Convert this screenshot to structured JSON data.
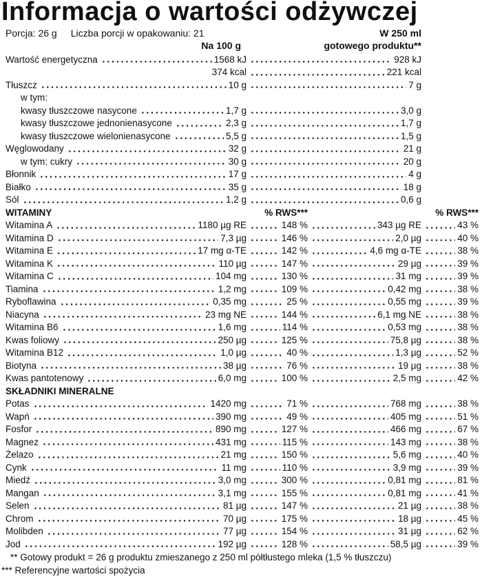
{
  "page": {
    "title": "Informacja o wartości odżywczej",
    "serving_info": {
      "porcja": "Porcja: 26 g",
      "liczba_porcji": "Liczba porcji w opakowaniu: 21"
    },
    "columns": {
      "per_100g": "Na 100 g",
      "per_250ml_line1": "W 250 ml",
      "per_250ml_line2": "gotowego produktu**"
    }
  },
  "rows": [
    {
      "type": "macro",
      "label": "Wartość energetyczna",
      "v1": "1568 kJ",
      "v2": "928 kJ"
    },
    {
      "type": "macro",
      "label": "",
      "v1": "374 kcal",
      "v2": "221 kcal",
      "no_left_dots": true
    },
    {
      "type": "macro",
      "label": "Tłuszcz",
      "v1": "10 g",
      "v2": "7 g"
    },
    {
      "type": "label",
      "label": "w tym:",
      "indent": true
    },
    {
      "type": "macro",
      "label": "kwasy tłuszczowe nasycone",
      "indent": true,
      "v1": "1,7 g",
      "v2": "3,0 g"
    },
    {
      "type": "macro",
      "label": "kwasy tłuszczowe jednonienasycone",
      "indent": true,
      "v1": "2,3 g",
      "v2": "1,7 g"
    },
    {
      "type": "macro",
      "label": "kwasy tłuszczowe wielonienasycone",
      "indent": true,
      "v1": "5,5 g",
      "v2": "1,5 g"
    },
    {
      "type": "macro",
      "label": "Węglowodany",
      "v1": "32 g",
      "v2": "21 g"
    },
    {
      "type": "macro",
      "label": "w tym: cukry",
      "indent": true,
      "v1": "30 g",
      "v2": "20 g"
    },
    {
      "type": "macro",
      "label": "Błonnik",
      "v1": "17 g",
      "v2": "4 g"
    },
    {
      "type": "macro",
      "label": "Białko",
      "v1": "35 g",
      "v2": "18 g"
    },
    {
      "type": "macro",
      "label": "Sól",
      "v1": "1,2 g",
      "v2": "0,6 g"
    },
    {
      "type": "section",
      "label": "WITAMINY",
      "rws1": "% RWS***",
      "rws2": "% RWS***"
    },
    {
      "type": "micro",
      "label": "Witamina A",
      "v1": "1180 µg RE",
      "p1": "148 %",
      "v2": "343 µg RE",
      "p2": "43 %"
    },
    {
      "type": "micro",
      "label": "Witamina D",
      "v1": "7,3 µg",
      "p1": "146 %",
      "v2": "2,0 µg",
      "p2": "40 %"
    },
    {
      "type": "micro",
      "label": "Witamina E",
      "v1": "17 mg α-TE",
      "p1": "142 %",
      "v2": "4,6 mg α-TE",
      "p2": "38 %"
    },
    {
      "type": "micro",
      "label": "Witamina K",
      "v1": "110 µg",
      "p1": "147 %",
      "v2": "29 µg",
      "p2": "39 %"
    },
    {
      "type": "micro",
      "label": "Witamina C",
      "v1": "104 mg",
      "p1": "130 %",
      "v2": "31 mg",
      "p2": "39 %"
    },
    {
      "type": "micro",
      "label": "Tiamina",
      "v1": "1,2 mg",
      "p1": "109 %",
      "v2": "0,42 mg",
      "p2": "38 %"
    },
    {
      "type": "micro",
      "label": "Ryboflawina",
      "v1": "0,35 mg",
      "p1": "25 %",
      "v2": "0,55 mg",
      "p2": "39 %"
    },
    {
      "type": "micro",
      "label": "Niacyna",
      "v1": "23 mg NE",
      "p1": "144 %",
      "v2": "6,1 mg NE",
      "p2": "38 %"
    },
    {
      "type": "micro",
      "label": "Witamina B6",
      "v1": "1,6 mg",
      "p1": "114 %",
      "v2": "0,53 mg",
      "p2": "38 %"
    },
    {
      "type": "micro",
      "label": "Kwas foliowy",
      "v1": "250 µg",
      "p1": "125 %",
      "v2": "75,8 µg",
      "p2": "38 %"
    },
    {
      "type": "micro",
      "label": "Witamina B12",
      "v1": "1,0 µg",
      "p1": "40 %",
      "v2": "1,3 µg",
      "p2": "52 %"
    },
    {
      "type": "micro",
      "label": "Biotyna",
      "v1": "38 µg",
      "p1": "76 %",
      "v2": "19 µg",
      "p2": "38 %"
    },
    {
      "type": "micro",
      "label": "Kwas pantotenowy",
      "v1": "6,0 mg",
      "p1": "100 %",
      "v2": "2,5 mg",
      "p2": "42 %"
    },
    {
      "type": "section",
      "label": "SKŁADNIKI MINERALNE"
    },
    {
      "type": "micro",
      "label": "Potas",
      "v1": "1420 mg",
      "p1": "71 %",
      "v2": "768 mg",
      "p2": "38 %"
    },
    {
      "type": "micro",
      "label": "Wapń",
      "v1": "390 mg",
      "p1": "49 %",
      "v2": "405 mg",
      "p2": "51 %"
    },
    {
      "type": "micro",
      "label": "Fosfor",
      "v1": "890 mg",
      "p1": "127 %",
      "v2": "466 mg",
      "p2": "67 %"
    },
    {
      "type": "micro",
      "label": "Magnez",
      "v1": "431 mg",
      "p1": "115 %",
      "v2": "143 mg",
      "p2": "38 %"
    },
    {
      "type": "micro",
      "label": "Żelazo",
      "v1": "21 mg",
      "p1": "150 %",
      "v2": "5,6 mg",
      "p2": "40 %"
    },
    {
      "type": "micro",
      "label": "Cynk",
      "v1": "11 mg",
      "p1": "110 %",
      "v2": "3,9 mg",
      "p2": "39 %"
    },
    {
      "type": "micro",
      "label": "Miedź",
      "v1": "3,0 mg",
      "p1": "300 %",
      "v2": "0,81 mg",
      "p2": "81 %"
    },
    {
      "type": "micro",
      "label": "Mangan",
      "v1": "3,1 mg",
      "p1": "155 %",
      "v2": "0,81 mg",
      "p2": "41 %"
    },
    {
      "type": "micro",
      "label": "Selen",
      "v1": "81 µg",
      "p1": "147 %",
      "v2": "21 µg",
      "p2": "38 %"
    },
    {
      "type": "micro",
      "label": "Chrom",
      "v1": "70 µg",
      "p1": "175 %",
      "v2": "18 µg",
      "p2": "45 %"
    },
    {
      "type": "micro",
      "label": "Molibden",
      "v1": "77 µg",
      "p1": "154 %",
      "v2": "31 µg",
      "p2": "62 %"
    },
    {
      "type": "micro",
      "label": "Jod",
      "v1": "192 µg",
      "p1": "128 %",
      "v2": "58,5 µg",
      "p2": "39 %"
    }
  ],
  "footnotes": [
    "** Gotowy produkt = 26 g produktu zmieszanego z 250 ml półtłustego mleka (1,5 % tłuszczu)",
    "*** Referencyjne wartości spożycia"
  ],
  "colors": {
    "text": "#101010",
    "background": "#ffffff"
  }
}
